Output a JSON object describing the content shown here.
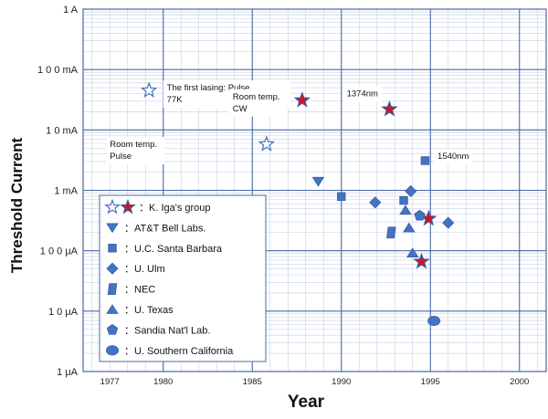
{
  "chart_data": {
    "type": "scatter",
    "title": "",
    "xlabel": "Year",
    "ylabel": "Threshold Current",
    "xlim": [
      1975.5,
      2001.5
    ],
    "ylim_log10_amperes": [
      -6,
      0
    ],
    "y_scale": "log",
    "grid": true,
    "legend_position": "bottom-left",
    "x_ticks": [
      {
        "value": 1977,
        "label": "1977"
      },
      {
        "value": 1980,
        "label": "1980"
      },
      {
        "value": 1985,
        "label": "1985"
      },
      {
        "value": 1990,
        "label": "1990"
      },
      {
        "value": 1995,
        "label": "1995"
      },
      {
        "value": 2000,
        "label": "2000"
      }
    ],
    "y_ticks": [
      {
        "value": 1,
        "label": "1 A"
      },
      {
        "value": 0.1,
        "label": "1 0 0 mA"
      },
      {
        "value": 0.01,
        "label": "1 0 mA"
      },
      {
        "value": 0.001,
        "label": "1 mA"
      },
      {
        "value": 0.0001,
        "label": "1 0 0 μA"
      },
      {
        "value": 1e-05,
        "label": "1 0 μA"
      },
      {
        "value": 1e-06,
        "label": "1 μA"
      }
    ],
    "series": [
      {
        "name": "：K. Iga's group",
        "marker": "star",
        "color": "#4472c4",
        "fill": "hollow-and-red",
        "points": [
          {
            "x": 1979.2,
            "y": 0.045,
            "fill": "hollow"
          },
          {
            "x": 1985.8,
            "y": 0.0058,
            "fill": "hollow"
          },
          {
            "x": 1987.8,
            "y": 0.031,
            "fill": "red"
          },
          {
            "x": 1992.7,
            "y": 0.022,
            "fill": "red"
          },
          {
            "x": 1994.9,
            "y": 0.00034,
            "fill": "red"
          },
          {
            "x": 1994.5,
            "y": 6.6e-05,
            "fill": "red"
          }
        ]
      },
      {
        "name": "：AT&T Bell Labs.",
        "marker": "triangle-down",
        "color": "#4472c4",
        "points": [
          {
            "x": 1988.7,
            "y": 0.0014
          }
        ]
      },
      {
        "name": "：U.C. Santa Barbara",
        "marker": "square",
        "color": "#4472c4",
        "points": [
          {
            "x": 1990.0,
            "y": 0.00079
          },
          {
            "x": 1993.5,
            "y": 0.00068
          },
          {
            "x": 1994.7,
            "y": 0.0031
          }
        ]
      },
      {
        "name": "：U. Ulm",
        "marker": "diamond",
        "color": "#4472c4",
        "points": [
          {
            "x": 1991.9,
            "y": 0.00063
          },
          {
            "x": 1993.9,
            "y": 0.00097
          },
          {
            "x": 1996.0,
            "y": 0.00029
          }
        ]
      },
      {
        "name": "：NEC",
        "marker": "parallelogram",
        "color": "#4472c4",
        "points": [
          {
            "x": 1992.8,
            "y": 0.0002
          }
        ]
      },
      {
        "name": "：U. Texas",
        "marker": "triangle-up",
        "color": "#4472c4",
        "points": [
          {
            "x": 1993.6,
            "y": 0.00047
          },
          {
            "x": 1993.8,
            "y": 0.00024
          },
          {
            "x": 1994.0,
            "y": 9.2e-05
          }
        ]
      },
      {
        "name": "：Sandia Nat'l Lab.",
        "marker": "pentagon",
        "color": "#4472c4",
        "points": [
          {
            "x": 1994.4,
            "y": 0.00038
          }
        ]
      },
      {
        "name": "：U. Southern California",
        "marker": "circle",
        "color": "#4472c4",
        "points": [
          {
            "x": 1995.2,
            "y": 6.9e-06
          }
        ]
      }
    ],
    "annotations": [
      {
        "id": "first-lasing",
        "lines": [
          "The first lasing: Pulse,",
          "77K"
        ],
        "x": 1980.2,
        "y": 0.045
      },
      {
        "id": "rt-cw",
        "lines": [
          "Room temp.",
          "CW"
        ],
        "x": 1983.9,
        "y": 0.032
      },
      {
        "id": "1374nm",
        "lines": [
          "1374nm"
        ],
        "x": 1990.3,
        "y": 0.036
      },
      {
        "id": "rt-pulse",
        "lines": [
          "Room temp.",
          "Pulse"
        ],
        "x": 1977.0,
        "y": 0.0052
      },
      {
        "id": "1540nm",
        "lines": [
          "1540nm"
        ],
        "x": 1995.4,
        "y": 0.0033
      }
    ],
    "colors": {
      "marker_blue": "#4472c4",
      "marker_outline": "#3a5fa0",
      "star_red": "#d9101c",
      "grid_major": "#4a68a6",
      "grid_minor": "#c4d0e6"
    }
  }
}
